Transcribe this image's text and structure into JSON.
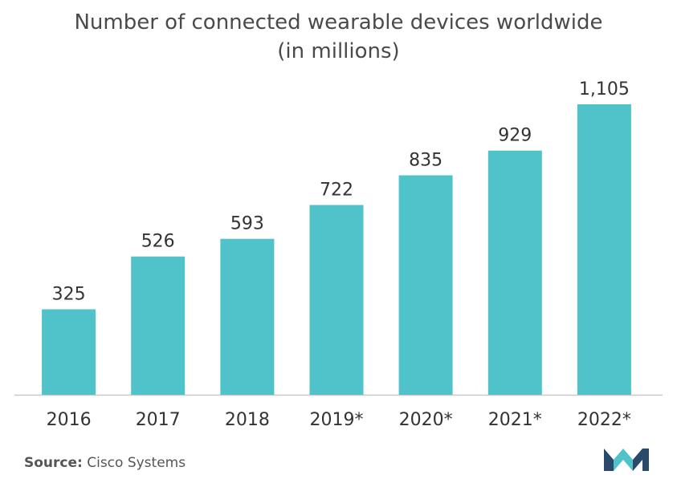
{
  "chart_data": {
    "type": "bar",
    "title": "Number of connected wearable devices worldwide",
    "subtitle": "(in millions)",
    "categories": [
      "2016",
      "2017",
      "2018",
      "2019*",
      "2020*",
      "2021*",
      "2022*"
    ],
    "values": [
      325,
      526,
      593,
      722,
      835,
      929,
      1105
    ],
    "value_labels": [
      "325",
      "526",
      "593",
      "722",
      "835",
      "929",
      "1,105"
    ],
    "ylim": [
      0,
      1105
    ],
    "grid": false,
    "legend": "none",
    "bar_color": "#4fc3c9",
    "axis_color": "#c8c8c8"
  },
  "footer": {
    "source_prefix": "Source:",
    "source_text": " Cisco Systems"
  },
  "logo": {
    "icon": "mordor-logo-icon",
    "color_dark": "#2b4a6b",
    "color_light": "#4fc3c9"
  }
}
